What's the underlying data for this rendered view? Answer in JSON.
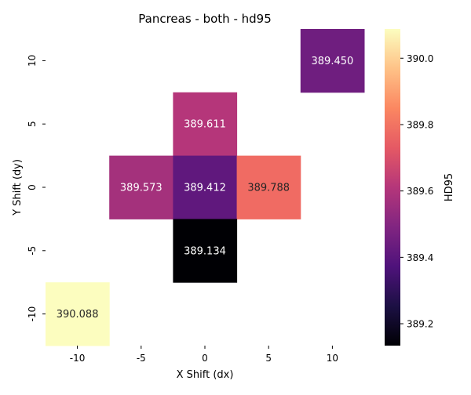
{
  "chart_data": {
    "type": "heatmap",
    "title": "Pancreas - both - hd95",
    "xlabel": "X Shift (dx)",
    "ylabel": "Y Shift (dy)",
    "x_categories": [
      "-10",
      "-5",
      "0",
      "5",
      "10"
    ],
    "y_categories": [
      "10",
      "5",
      "0",
      "-5",
      "-10"
    ],
    "cells": [
      {
        "x": "10",
        "y": "10",
        "value": 389.45,
        "label": "389.450"
      },
      {
        "x": "0",
        "y": "5",
        "value": 389.611,
        "label": "389.611"
      },
      {
        "x": "-5",
        "y": "0",
        "value": 389.573,
        "label": "389.573"
      },
      {
        "x": "0",
        "y": "0",
        "value": 389.412,
        "label": "389.412"
      },
      {
        "x": "5",
        "y": "0",
        "value": 389.788,
        "label": "389.788"
      },
      {
        "x": "0",
        "y": "-5",
        "value": 389.134,
        "label": "389.134"
      },
      {
        "x": "-10",
        "y": "-10",
        "value": 390.088,
        "label": "390.088"
      }
    ],
    "colorbar": {
      "label": "HD95",
      "colormap": "magma",
      "vmin": 389.134,
      "vmax": 390.088,
      "ticks": [
        389.2,
        389.4,
        389.6,
        389.8,
        390.0
      ],
      "tick_labels": [
        "389.2",
        "389.4",
        "389.6",
        "389.8",
        "390.0"
      ]
    },
    "grid": false
  }
}
